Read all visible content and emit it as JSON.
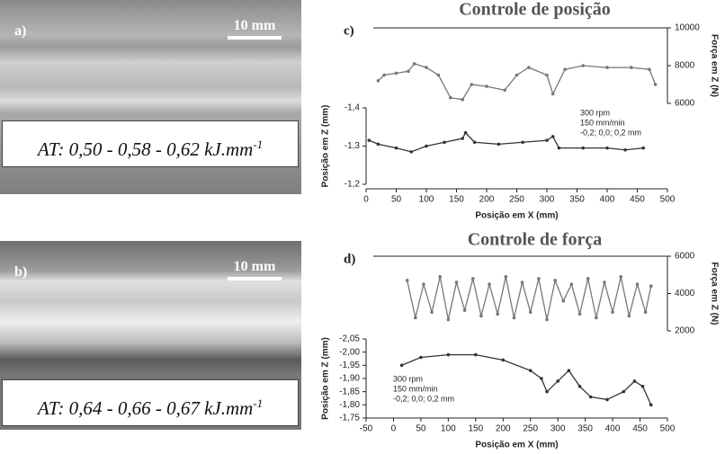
{
  "photos": [
    {
      "label": "a)",
      "scale": "10 mm",
      "caption": "AT: 0,50 - 0,58 - 0,62 kJ.mm",
      "caption_exponent": "-1"
    },
    {
      "label": "b)",
      "scale": "10 mm",
      "caption": "AT: 0,64 - 0,66 - 0,67 kJ.mm",
      "caption_exponent": "-1"
    }
  ],
  "chart_data": [
    {
      "type": "line",
      "title": "Controle de posição",
      "panel_label": "c)",
      "xlabel": "Posição em X (mm)",
      "ylabel": "Posição em Z (mm)",
      "y2label": "Força em Z (N)",
      "xlim": [
        0,
        500
      ],
      "xticks": [
        0,
        50,
        100,
        150,
        200,
        250,
        300,
        350,
        400,
        450,
        500
      ],
      "ylim": [
        -1.2,
        -1.4
      ],
      "yticks": [
        {
          "value": -1.4,
          "label": "-1,4"
        },
        {
          "value": -1.3,
          "label": "-1,3"
        },
        {
          "value": -1.2,
          "label": "-1,2"
        }
      ],
      "y2lim": [
        6000,
        10000
      ],
      "y2ticks": [
        6000,
        8000,
        10000
      ],
      "annotations": [
        "300 rpm",
        "150 mm/min",
        "-0,2; 0,0; 0,2 mm"
      ],
      "series": [
        {
          "axis": "y2",
          "color": "#777777",
          "x": [
            20,
            30,
            50,
            70,
            80,
            100,
            120,
            140,
            160,
            175,
            200,
            230,
            250,
            270,
            300,
            310,
            330,
            360,
            400,
            440,
            470,
            480
          ],
          "values": [
            7200,
            7500,
            7600,
            7700,
            8100,
            7900,
            7500,
            6300,
            6200,
            7000,
            6900,
            6700,
            7500,
            7900,
            7500,
            6500,
            7800,
            8000,
            7900,
            7900,
            7800,
            7000
          ]
        },
        {
          "axis": "y",
          "color": "#333333",
          "x": [
            5,
            20,
            50,
            75,
            100,
            130,
            160,
            165,
            180,
            220,
            260,
            300,
            310,
            320,
            360,
            400,
            430,
            460
          ],
          "values": [
            -1.315,
            -1.305,
            -1.295,
            -1.285,
            -1.3,
            -1.31,
            -1.32,
            -1.335,
            -1.31,
            -1.305,
            -1.31,
            -1.315,
            -1.325,
            -1.295,
            -1.295,
            -1.295,
            -1.29,
            -1.295
          ]
        }
      ]
    },
    {
      "type": "line",
      "title": "Controle de força",
      "panel_label": "d)",
      "xlabel": "Posição em X (mm)",
      "ylabel": "Posição em Z (mm)",
      "y2label": "Força em Z (N)",
      "xlim": [
        -50,
        500
      ],
      "xticks": [
        -50,
        0,
        50,
        100,
        150,
        200,
        250,
        300,
        350,
        400,
        450,
        500
      ],
      "ylim": [
        -1.75,
        -2.05
      ],
      "yticks": [
        {
          "value": -2.05,
          "label": "-2,05"
        },
        {
          "value": -2.0,
          "label": "-2,00"
        },
        {
          "value": -1.95,
          "label": "-1,95"
        },
        {
          "value": -1.9,
          "label": "-1,90"
        },
        {
          "value": -1.85,
          "label": "-1,85"
        },
        {
          "value": -1.8,
          "label": "-1,80"
        },
        {
          "value": -1.75,
          "label": "-1,75"
        }
      ],
      "y2lim": [
        2000,
        6000
      ],
      "y2ticks": [
        2000,
        4000,
        6000
      ],
      "annotations": [
        "300 rpm",
        "150 mm/min",
        "-0,2; 0,0; 0,2 mm"
      ],
      "series": [
        {
          "axis": "y2",
          "color": "#777777",
          "x": [
            25,
            40,
            55,
            70,
            85,
            100,
            115,
            130,
            145,
            160,
            175,
            190,
            205,
            220,
            235,
            250,
            265,
            280,
            295,
            310,
            325,
            340,
            355,
            370,
            385,
            400,
            415,
            430,
            445,
            460,
            470
          ],
          "values": [
            4700,
            2700,
            4500,
            3000,
            4900,
            2600,
            4600,
            3100,
            4800,
            2800,
            4500,
            2900,
            4900,
            2700,
            4600,
            3000,
            4800,
            2600,
            4700,
            3600,
            4500,
            2900,
            4800,
            2700,
            4600,
            3000,
            4900,
            2800,
            4500,
            3000,
            4400
          ]
        },
        {
          "axis": "y",
          "color": "#333333",
          "x": [
            15,
            50,
            100,
            150,
            200,
            250,
            270,
            280,
            300,
            320,
            340,
            360,
            390,
            420,
            440,
            455,
            470
          ],
          "values": [
            -1.95,
            -1.98,
            -1.99,
            -1.99,
            -1.97,
            -1.93,
            -1.9,
            -1.85,
            -1.89,
            -1.93,
            -1.87,
            -1.83,
            -1.82,
            -1.85,
            -1.89,
            -1.87,
            -1.8
          ]
        }
      ]
    }
  ]
}
